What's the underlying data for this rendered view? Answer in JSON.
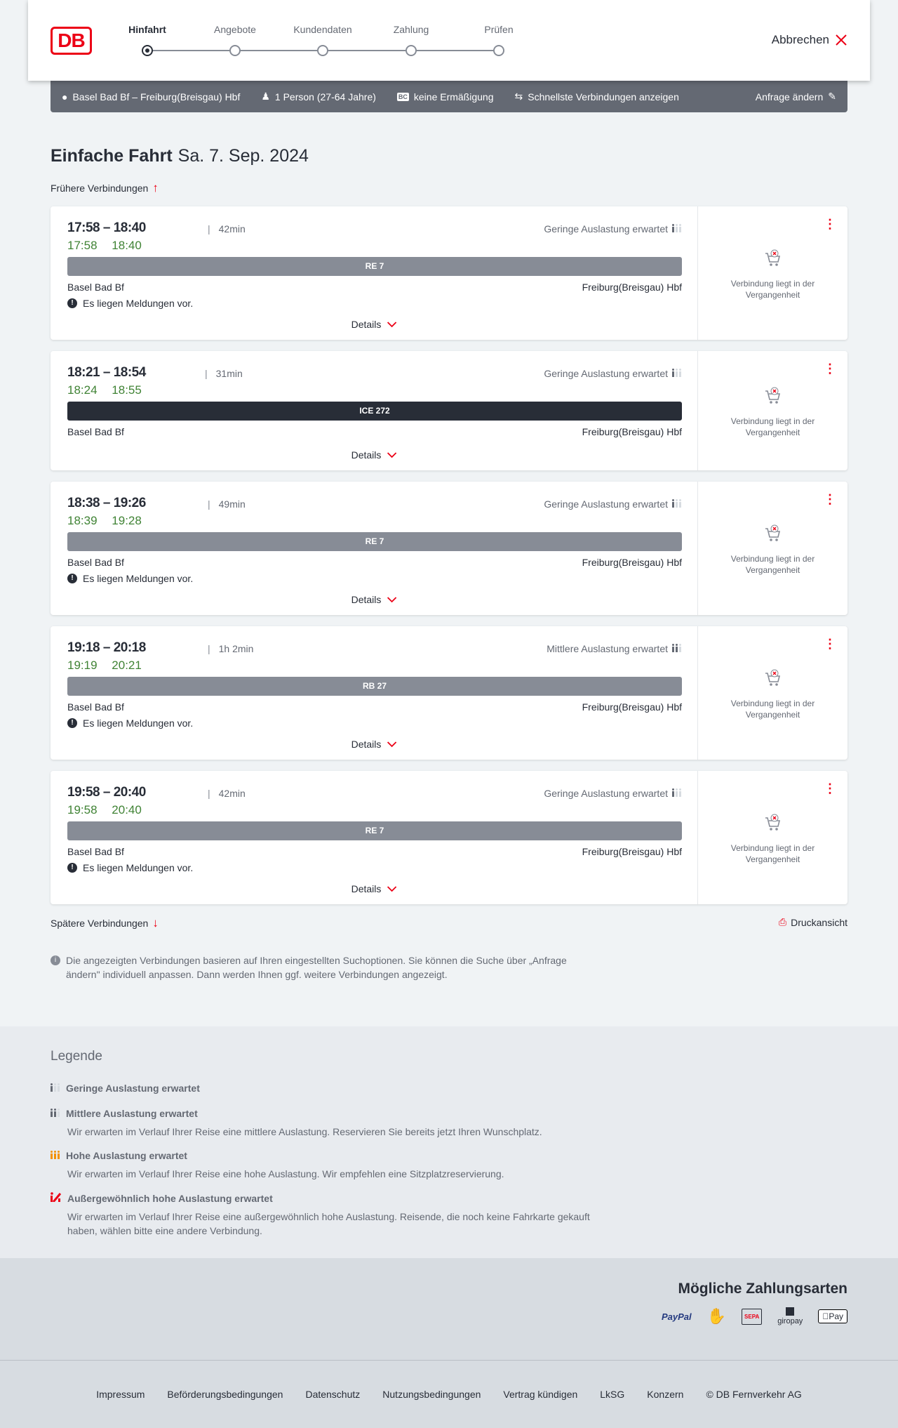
{
  "header": {
    "logo": "DB",
    "steps": [
      "Hinfahrt",
      "Angebote",
      "Kundendaten",
      "Zahlung",
      "Prüfen"
    ],
    "active_step": 0,
    "cancel_label": "Abbrechen"
  },
  "summary": {
    "route": "Basel Bad Bf – Freiburg(Breisgau) Hbf",
    "travellers": "1 Person (27-64 Jahre)",
    "discount_badge": "BC",
    "discount": "keine Ermäßigung",
    "fastest": "Schnellste Verbindungen anzeigen",
    "change": "Anfrage ändern"
  },
  "page": {
    "title": "Einfache Fahrt",
    "date": "Sa. 7. Sep. 2024",
    "earlier": "Frühere Verbindungen",
    "later": "Spätere Verbindungen",
    "print": "Druckansicht",
    "info": "Die angezeigten Verbindungen basieren auf Ihren eingestellten Suchoptionen. Sie können die Suche über „Anfrage ändern\" individuell anpassen. Dann werden Ihnen ggf. weitere Verbindungen angezeigt."
  },
  "connections": [
    {
      "times": "17:58 – 18:40",
      "duration": "42min",
      "occupancy": "Geringe Auslastung erwartet",
      "rt_dep": "17:58",
      "rt_arr": "18:40",
      "train": "RE 7",
      "from": "Basel Bad Bf",
      "to": "Freiburg(Breisgau) Hbf",
      "message": "Es liegen Meldungen vor.",
      "details": "Details",
      "status": "Verbindung liegt in der Vergangenheit"
    },
    {
      "times": "18:21 – 18:54",
      "duration": "31min",
      "occupancy": "Geringe Auslastung erwartet",
      "rt_dep": "18:24",
      "rt_arr": "18:55",
      "train": "ICE 272",
      "from": "Basel Bad Bf",
      "to": "Freiburg(Breisgau) Hbf",
      "message": null,
      "details": "Details",
      "status": "Verbindung liegt in der Vergangenheit"
    },
    {
      "times": "18:38 – 19:26",
      "duration": "49min",
      "occupancy": "Geringe Auslastung erwartet",
      "rt_dep": "18:39",
      "rt_arr": "19:28",
      "train": "RE 7",
      "from": "Basel Bad Bf",
      "to": "Freiburg(Breisgau) Hbf",
      "message": "Es liegen Meldungen vor.",
      "details": "Details",
      "status": "Verbindung liegt in der Vergangenheit"
    },
    {
      "times": "19:18 – 20:18",
      "duration": "1h 2min",
      "occupancy": "Mittlere Auslastung erwartet",
      "rt_dep": "19:19",
      "rt_arr": "20:21",
      "train": "RB 27",
      "from": "Basel Bad Bf",
      "to": "Freiburg(Breisgau) Hbf",
      "message": "Es liegen Meldungen vor.",
      "details": "Details",
      "status": "Verbindung liegt in der Vergangenheit"
    },
    {
      "times": "19:58 – 20:40",
      "duration": "42min",
      "occupancy": "Geringe Auslastung erwartet",
      "rt_dep": "19:58",
      "rt_arr": "20:40",
      "train": "RE 7",
      "from": "Basel Bad Bf",
      "to": "Freiburg(Breisgau) Hbf",
      "message": "Es liegen Meldungen vor.",
      "details": "Details",
      "status": "Verbindung liegt in der Vergangenheit"
    }
  ],
  "legend": {
    "title": "Legende",
    "items": [
      {
        "title": "Geringe Auslastung erwartet",
        "desc": "",
        "color": "#646973"
      },
      {
        "title": "Mittlere Auslastung erwartet",
        "desc": "Wir erwarten im Verlauf Ihrer Reise eine mittlere Auslastung. Reservieren Sie bereits jetzt Ihren Wunschplatz.",
        "color": "#646973"
      },
      {
        "title": "Hohe Auslastung erwartet",
        "desc": "Wir erwarten im Verlauf Ihrer Reise eine hohe Auslastung. Wir empfehlen eine Sitzplatzreservierung.",
        "color": "#f39200"
      },
      {
        "title": "Außergewöhnlich hohe Auslastung erwartet",
        "desc": "Wir erwarten im Verlauf Ihrer Reise eine außergewöhnlich hohe Auslastung. Reisende, die noch keine Fahrkarte gekauft haben, wählen bitte eine andere Verbindung.",
        "color": "#ec0016"
      }
    ]
  },
  "payment": {
    "title": "Mögliche Zahlungsarten",
    "methods": [
      "PayPal",
      "Kreditkarte",
      "SEPA",
      "giropay",
      "Pay"
    ]
  },
  "footer": {
    "links": [
      "Impressum",
      "Beförderungsbedingungen",
      "Datenschutz",
      "Nutzungsbedingungen",
      "Vertrag kündigen",
      "LkSG",
      "Konzern",
      "© DB Fernverkehr AG"
    ]
  },
  "colors": {
    "accent": "#ec0016",
    "realtime": "#408335",
    "regional": "#878c96",
    "longdistance": "#282d37"
  }
}
